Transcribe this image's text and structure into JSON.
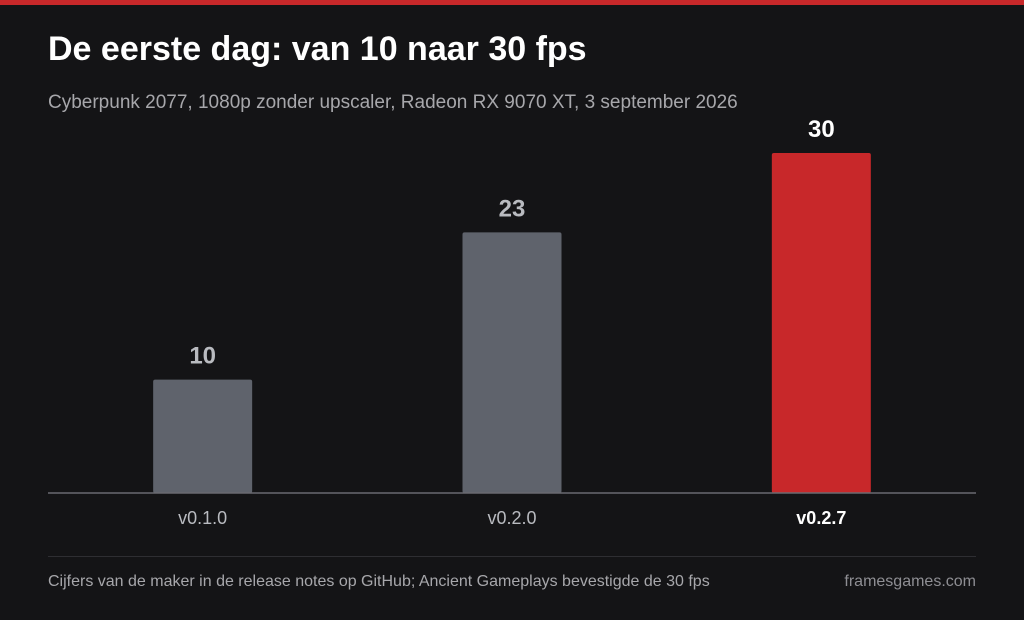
{
  "title": "De eerste dag: van 10 naar 30 fps",
  "subtitle": "Cyberpunk 2077, 1080p zonder upscaler, Radeon RX 9070 XT, 3 september 2026",
  "footer": {
    "source": "Cijfers van de maker in de release notes op GitHub; Ancient Gameplays bevestigde de 30 fps",
    "brand": "framesgames.com"
  },
  "colors": {
    "background": "#141416",
    "accent": "#c8282a",
    "bar_default": "#5f636c",
    "label_default": "#b9bbc0",
    "label_highlight": "#ffffff"
  },
  "chart_data": {
    "type": "bar",
    "categories": [
      "v0.1.0",
      "v0.2.0",
      "v0.2.7"
    ],
    "values": [
      10,
      23,
      30
    ],
    "highlight_index": 2,
    "title": "De eerste dag: van 10 naar 30 fps",
    "subtitle": "Cyberpunk 2077, 1080p zonder upscaler, Radeon RX 9070 XT, 3 september 2026",
    "xlabel": "",
    "ylabel": "",
    "ylim": [
      0,
      30
    ],
    "grid": false,
    "legend": "none"
  }
}
